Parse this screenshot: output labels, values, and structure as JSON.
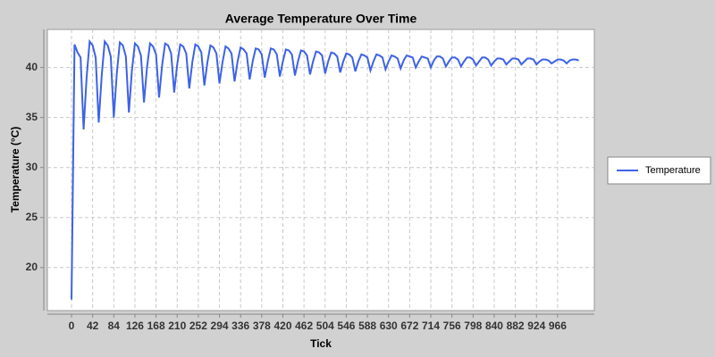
{
  "chart_data": {
    "type": "line",
    "title": "Average Temperature Over Time",
    "x_label": "Tick",
    "y_label": "Temperature (°C)",
    "x": [
      0,
      6,
      12,
      18,
      24,
      30,
      36,
      42,
      48,
      54,
      60,
      66,
      72,
      78,
      84,
      90,
      96,
      102,
      108,
      114,
      120,
      126,
      132,
      138,
      144,
      150,
      156,
      162,
      168,
      174,
      180,
      186,
      192,
      198,
      204,
      210,
      216,
      222,
      228,
      234,
      240,
      246,
      252,
      258,
      264,
      270,
      276,
      282,
      288,
      294,
      300,
      306,
      312,
      318,
      324,
      330,
      336,
      342,
      348,
      354,
      360,
      366,
      372,
      378,
      384,
      390,
      396,
      402,
      408,
      414,
      420,
      426,
      432,
      438,
      444,
      450,
      456,
      462,
      468,
      474,
      480,
      486,
      492,
      498,
      504,
      510,
      516,
      522,
      528,
      534,
      540,
      546,
      552,
      558,
      564,
      570,
      576,
      582,
      588,
      594,
      600,
      606,
      612,
      618,
      624,
      630,
      636,
      642,
      648,
      654,
      660,
      666,
      672,
      678,
      684,
      690,
      696,
      702,
      708,
      714,
      720,
      726,
      732,
      738,
      744,
      750,
      756,
      762,
      768,
      774,
      780,
      786,
      792,
      798,
      804,
      810,
      816,
      822,
      828,
      834,
      840,
      846,
      852,
      858,
      864,
      870,
      876,
      882,
      888,
      894,
      900,
      906,
      912,
      918,
      924,
      930,
      936,
      942,
      948,
      954,
      960,
      966,
      972,
      978,
      984,
      990,
      996,
      1002,
      1008
    ],
    "series": [
      {
        "name": "Temperature",
        "color": "#3d63e6",
        "values": [
          16.8,
          42.3,
          41.5,
          41.0,
          33.8,
          39.0,
          42.6,
          42.2,
          41.0,
          34.5,
          39.2,
          42.6,
          42.2,
          41.1,
          35.0,
          39.4,
          42.5,
          42.2,
          41.1,
          35.5,
          39.7,
          42.4,
          42.1,
          41.2,
          36.5,
          40.0,
          42.4,
          42.1,
          41.3,
          37.0,
          40.2,
          42.4,
          42.2,
          41.4,
          37.5,
          40.3,
          42.3,
          42.1,
          41.4,
          37.9,
          40.5,
          42.3,
          42.1,
          41.5,
          38.2,
          40.5,
          42.2,
          42.0,
          41.4,
          38.4,
          40.5,
          42.1,
          41.9,
          41.4,
          38.6,
          40.6,
          42.0,
          41.8,
          41.4,
          38.8,
          40.6,
          41.9,
          41.8,
          41.3,
          39.0,
          40.6,
          41.9,
          41.8,
          41.3,
          39.1,
          40.6,
          41.8,
          41.7,
          41.3,
          39.2,
          40.6,
          41.7,
          41.6,
          41.2,
          39.3,
          40.6,
          41.6,
          41.5,
          41.2,
          39.4,
          40.6,
          41.5,
          41.4,
          41.1,
          39.5,
          40.6,
          41.4,
          41.3,
          41.0,
          39.6,
          40.6,
          41.3,
          41.2,
          41.0,
          39.7,
          40.6,
          41.3,
          41.2,
          41.0,
          39.8,
          40.6,
          41.2,
          41.1,
          40.9,
          39.9,
          40.7,
          41.2,
          41.1,
          41.0,
          40.0,
          40.6,
          41.1,
          41.0,
          40.9,
          40.0,
          40.7,
          41.1,
          41.1,
          40.9,
          40.1,
          40.6,
          41.0,
          41.0,
          40.8,
          40.1,
          40.6,
          41.0,
          41.0,
          40.8,
          40.2,
          40.6,
          41.0,
          41.0,
          40.8,
          40.2,
          40.6,
          40.9,
          40.9,
          40.8,
          40.3,
          40.6,
          40.9,
          40.9,
          40.8,
          40.3,
          40.6,
          40.9,
          40.9,
          40.8,
          40.3,
          40.6,
          40.8,
          40.8,
          40.7,
          40.4,
          40.6,
          40.8,
          40.8,
          40.7,
          40.4,
          40.7,
          40.8,
          40.8,
          40.7
        ]
      }
    ],
    "xlim": [
      -48,
      1039
    ],
    "xticks": [
      0,
      42,
      84,
      126,
      168,
      210,
      252,
      294,
      336,
      378,
      420,
      462,
      504,
      546,
      588,
      630,
      672,
      714,
      756,
      798,
      840,
      882,
      924,
      966
    ],
    "ylim": [
      15.7,
      43.8
    ],
    "yticks": [
      20,
      25,
      30,
      35,
      40
    ],
    "grid": true,
    "legend": "right"
  }
}
